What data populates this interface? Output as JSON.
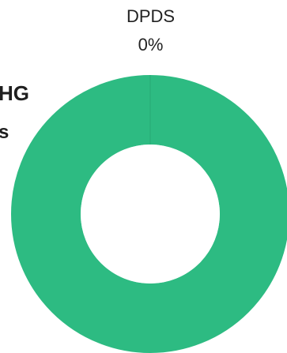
{
  "header": {
    "title_fragment": "HG",
    "subtitle_fragment": "s"
  },
  "chart_data": {
    "type": "pie",
    "style": "donut",
    "categories": [
      "DPDS"
    ],
    "values": [
      0
    ],
    "percent_labels": [
      "0%"
    ],
    "total_fill_color": "#2dbb82",
    "slice_colors": [
      "#2dbb82"
    ],
    "background": "#ffffff"
  }
}
